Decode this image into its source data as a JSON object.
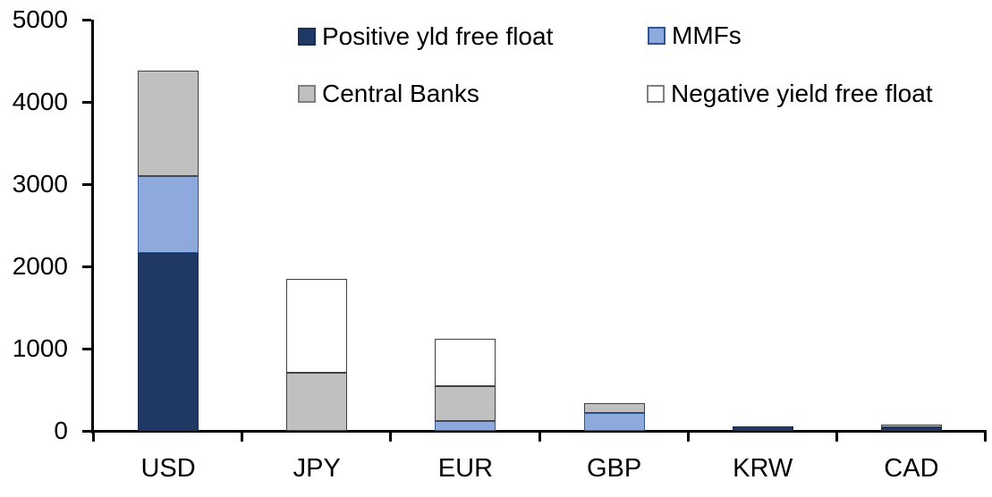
{
  "chart_data": {
    "type": "bar",
    "stacked": true,
    "title": "",
    "xlabel": "",
    "ylabel": "",
    "categories": [
      "USD",
      "JPY",
      "EUR",
      "GBP",
      "KRW",
      "CAD"
    ],
    "series": [
      {
        "name": "Positive yld free float",
        "color": "#1F3864",
        "border_color": "#1A2F54",
        "values": [
          2165,
          0,
          0,
          0,
          55,
          40
        ]
      },
      {
        "name": "MMFs",
        "color": "#8EA9DB",
        "border_color": "#305496",
        "values": [
          935,
          0,
          115,
          220,
          0,
          0
        ]
      },
      {
        "name": "Central Banks",
        "color": "#C0C0C0",
        "border_color": "#404040",
        "values": [
          1280,
          705,
          430,
          120,
          0,
          35
        ]
      },
      {
        "name": "Negative yield free float",
        "color": "#FFFFFF",
        "border_color": "#404040",
        "values": [
          0,
          1145,
          570,
          0,
          0,
          0
        ]
      }
    ],
    "approx_totals": [
      4380,
      1850,
      1115,
      340,
      55,
      75
    ],
    "ylim": [
      0,
      5000
    ],
    "yticks": [
      0,
      1000,
      2000,
      3000,
      4000,
      5000
    ],
    "grid": false,
    "legend_position": "top",
    "legend": {
      "items": [
        {
          "label": "Positive yld free float",
          "swatch_fill": "#1F3864",
          "swatch_border": "#1A2F54"
        },
        {
          "label": "MMFs",
          "swatch_fill": "#8EA9DB",
          "swatch_border": "#305496"
        },
        {
          "label": "Central Banks",
          "swatch_fill": "#C0C0C0",
          "swatch_border": "#808080"
        },
        {
          "label": "Negative yield free float",
          "swatch_fill": "#FFFFFF",
          "swatch_border": "#808080"
        }
      ]
    },
    "colors": {
      "axis": "#000000",
      "text": "#000000",
      "background": "#FFFFFF"
    }
  }
}
